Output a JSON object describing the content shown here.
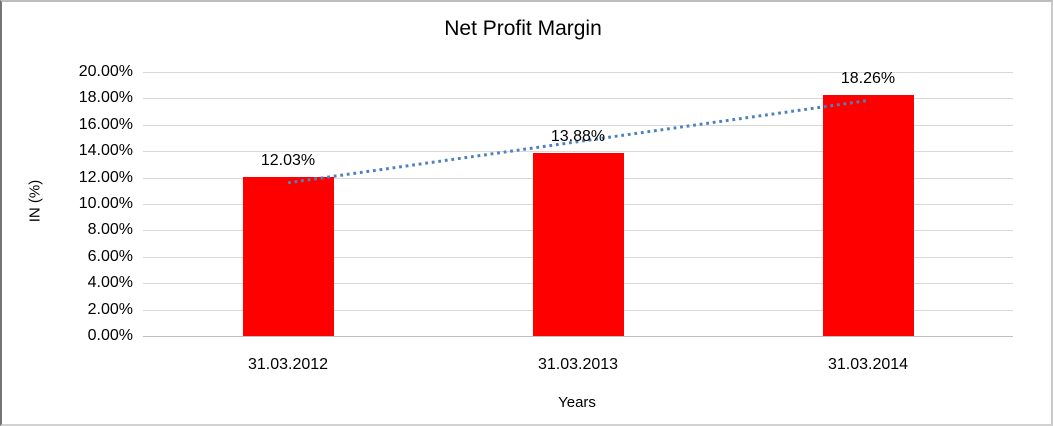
{
  "chart_data": {
    "type": "bar",
    "title": "Net Profit Margin",
    "xlabel": "Years",
    "ylabel": "IN (%)",
    "categories": [
      "31.03.2012",
      "31.03.2013",
      "31.03.2014"
    ],
    "values": [
      12.03,
      13.88,
      18.26
    ],
    "value_labels": [
      "12.03%",
      "13.88%",
      "18.26%"
    ],
    "ylim": [
      0,
      20
    ],
    "ytick_step": 2,
    "ytick_labels": [
      "0.00%",
      "2.00%",
      "4.00%",
      "6.00%",
      "8.00%",
      "10.00%",
      "12.00%",
      "14.00%",
      "16.00%",
      "18.00%",
      "20.00%"
    ],
    "grid": true,
    "legend": "none",
    "trendline": {
      "type": "linear",
      "style": "dotted",
      "span": "first-to-last-category"
    },
    "colors": {
      "bar": "#FF0000",
      "trendline": "#4F81BD",
      "gridline": "#D9D9D9",
      "axis_line": "#C0C0C0",
      "text": "#000000",
      "background": "#FFFFFF"
    }
  }
}
